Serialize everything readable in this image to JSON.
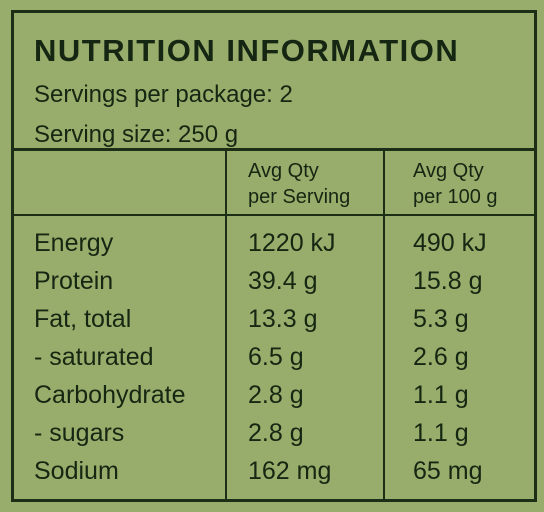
{
  "panel": {
    "title": "NUTRITION INFORMATION",
    "servings": "Servings per package: 2",
    "serving_size": "Serving size: 250 g"
  },
  "header": {
    "col_serving_line1": "Avg Qty",
    "col_serving_line2": "per Serving",
    "col_100g_line1": "Avg Qty",
    "col_100g_line2": "per 100 g"
  },
  "rows": [
    {
      "name": "Energy",
      "per_serving": "1220 kJ",
      "per_100g": "490 kJ"
    },
    {
      "name": "Protein",
      "per_serving": "39.4 g",
      "per_100g": "15.8 g"
    },
    {
      "name": "Fat, total",
      "per_serving": "13.3 g",
      "per_100g": "5.3 g"
    },
    {
      "name": "- saturated",
      "per_serving": "6.5 g",
      "per_100g": "2.6 g"
    },
    {
      "name": "Carbohydrate",
      "per_serving": "2.8 g",
      "per_100g": "1.1 g"
    },
    {
      "name": "- sugars",
      "per_serving": "2.8 g",
      "per_100g": "1.1 g"
    },
    {
      "name": "Sodium",
      "per_serving": "162 mg",
      "per_100g": "65 mg"
    }
  ],
  "colors": {
    "background": "#98ad6b",
    "ink": "#152612",
    "rule": "#1c2e16"
  }
}
